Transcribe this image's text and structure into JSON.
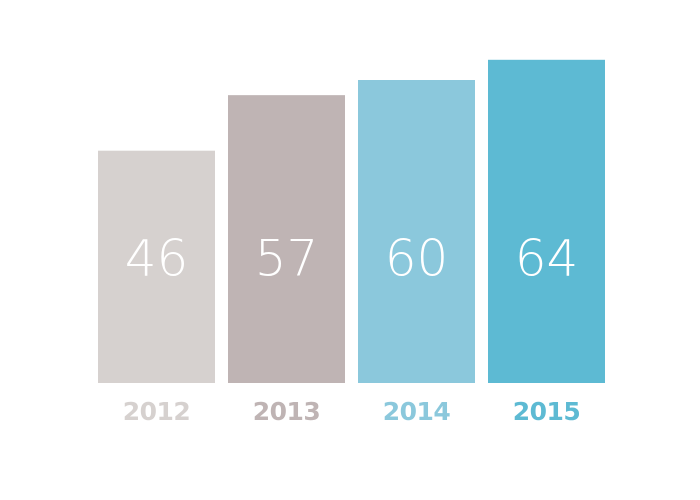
{
  "chart_data": {
    "type": "bar",
    "categories": [
      "2012",
      "2013",
      "2014",
      "2015"
    ],
    "values": [
      46,
      57,
      60,
      64
    ],
    "colors": [
      "#d6d1cf",
      "#bfb4b4",
      "#8bc8dc",
      "#5dbad3"
    ]
  }
}
